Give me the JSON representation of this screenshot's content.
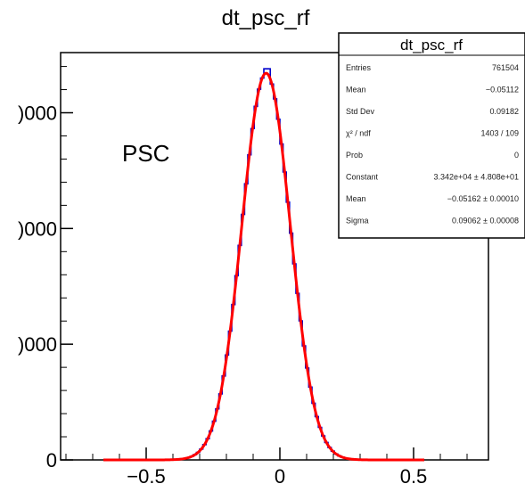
{
  "chart_data": {
    "type": "histogram",
    "title": "dt_psc_rf",
    "annotation": "PSC",
    "xlim": [
      -0.82,
      0.78
    ],
    "ylim": [
      0,
      35200
    ],
    "x_ticks": [
      {
        "value": -0.5,
        "label": "−0.5"
      },
      {
        "value": 0,
        "label": "0"
      },
      {
        "value": 0.5,
        "label": "0.5"
      }
    ],
    "y_ticks": [
      {
        "value": 0,
        "label": "0"
      },
      {
        "value": 10000,
        "label": ")000"
      },
      {
        "value": 20000,
        "label": ")000"
      },
      {
        "value": 30000,
        "label": ")000"
      }
    ],
    "histogram": {
      "color": "#0000cc",
      "x_min": -0.66,
      "x_max": 0.54,
      "bin_width": 0.012,
      "approx_peak": 33800,
      "approx_mean": -0.0516,
      "approx_sigma": 0.0906
    },
    "fit": {
      "function": "gaus",
      "color": "#ff0000",
      "constant": 33420,
      "mean": -0.05162,
      "sigma": 0.09062,
      "x_range": [
        -0.66,
        0.54
      ]
    },
    "stats_box": {
      "title": "dt_psc_rf",
      "rows": [
        {
          "label": "Entries",
          "value": "761504"
        },
        {
          "label": "Mean",
          "value": "−0.05112"
        },
        {
          "label": "Std Dev",
          "value": "0.09182"
        },
        {
          "label": "χ² / ndf",
          "value": "1403 / 109"
        },
        {
          "label": "Prob",
          "value": "0"
        },
        {
          "label": "Constant",
          "value": "3.342e+04 ± 4.808e+01"
        },
        {
          "label": "Mean",
          "value": "−0.05162 ± 0.00010"
        },
        {
          "label": "Sigma",
          "value": "0.09062 ± 0.00008"
        }
      ]
    }
  }
}
